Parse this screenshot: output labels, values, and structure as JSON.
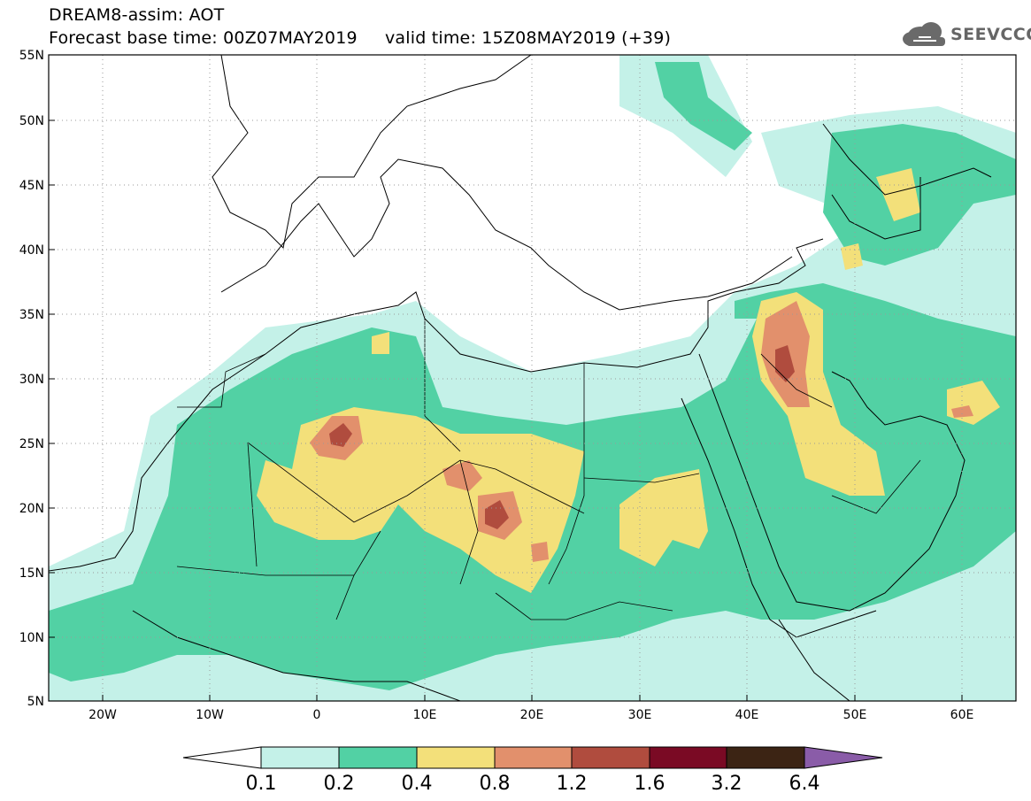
{
  "header": {
    "title_line1": "DREAM8-assim: AOT",
    "title_line2": "Forecast base time: 00Z07MAY2019     valid time: 15Z08MAY2019 (+39)",
    "logo_text": "SEEVCCC"
  },
  "map": {
    "lon_range": [
      -25,
      65
    ],
    "lat_range": [
      5,
      55
    ],
    "lat_ticks": [
      "55N",
      "50N",
      "45N",
      "40N",
      "35N",
      "30N",
      "25N",
      "20N",
      "15N",
      "10N",
      "5N"
    ],
    "lon_ticks": [
      "20W",
      "10W",
      "0",
      "10E",
      "20E",
      "30E",
      "40E",
      "50E",
      "60E"
    ],
    "grid": "dotted",
    "colors": {
      "ocean": "#ffffff",
      "land_line": "#000000",
      "level_0_1": "#c4f1e8",
      "level_0_2": "#52d1a4",
      "level_0_4": "#f3e07a",
      "level_0_8": "#e2906c",
      "level_1_2": "#b04c3e",
      "level_1_6": "#7a0a24",
      "level_3_2": "#3c2414",
      "level_6_4": "#8a5ca8"
    }
  },
  "colorbar": {
    "labels": [
      "0.1",
      "0.2",
      "0.4",
      "0.8",
      "1.2",
      "1.6",
      "3.2",
      "6.4"
    ],
    "colors": [
      "#c4f1e8",
      "#52d1a4",
      "#f3e07a",
      "#e2906c",
      "#b04c3e",
      "#7a0a24",
      "#3c2414"
    ],
    "extend_low_color": "#ffffff",
    "extend_high_color": "#8a5ca8"
  }
}
